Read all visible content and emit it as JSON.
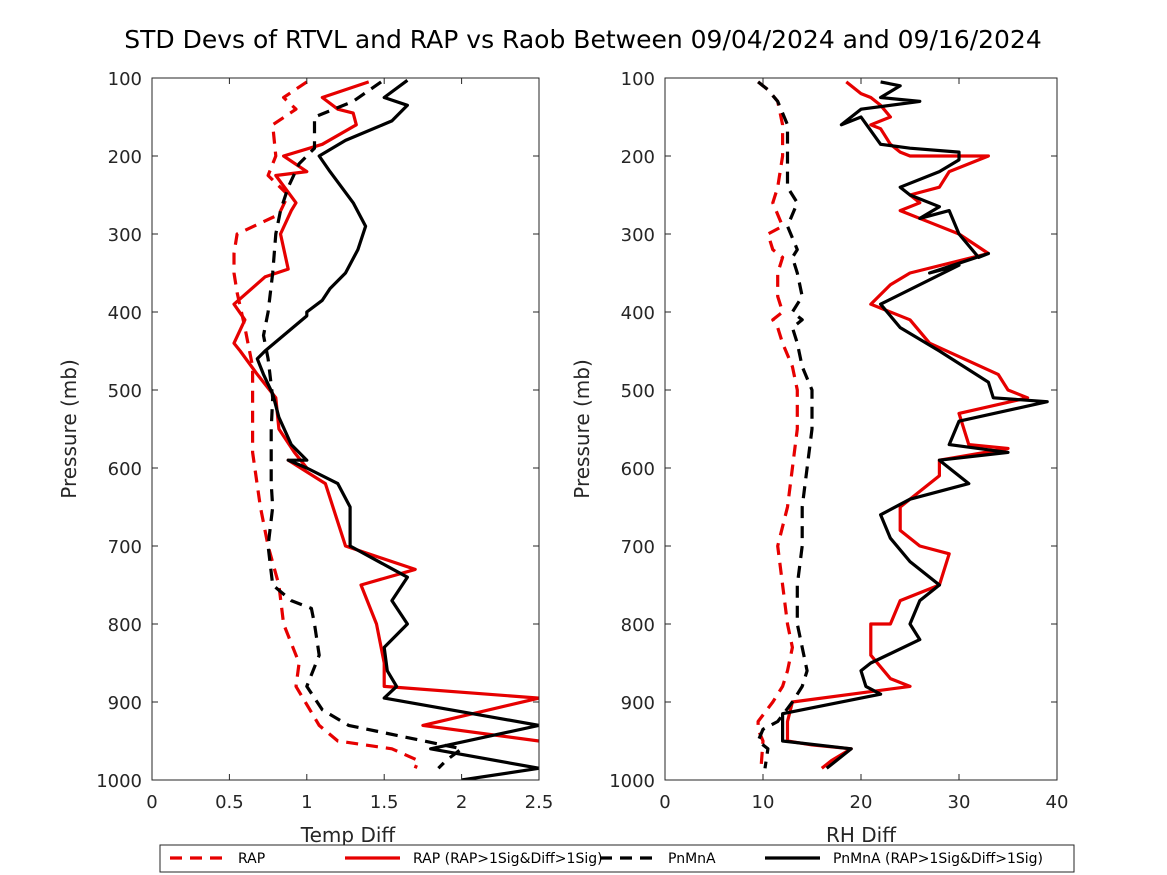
{
  "title": "STD Devs of RTVL and RAP vs Raob Between 09/04/2024 and 09/16/2024",
  "chart_data": [
    {
      "type": "line",
      "panel": "left",
      "xlabel": "Temp Diff",
      "ylabel": "Pressure (mb)",
      "xlim": [
        0,
        2.5
      ],
      "ylim": [
        1000,
        100
      ],
      "y_reversed": true,
      "xticks": [
        "0",
        "0.5",
        "1",
        "1.5",
        "2",
        "2.5"
      ],
      "yticks": [
        "100",
        "200",
        "300",
        "400",
        "500",
        "600",
        "700",
        "800",
        "900",
        "1000"
      ],
      "series": [
        {
          "name": "RAP",
          "style": "dashed",
          "color": "#e60000",
          "x": [
            1.0,
            0.85,
            0.93,
            0.78,
            0.8,
            0.75,
            0.88,
            0.82,
            0.55,
            0.53,
            0.53,
            0.55,
            0.6,
            0.65,
            0.65,
            0.65,
            0.7,
            0.75,
            0.82,
            0.85,
            0.95,
            0.93,
            1.08,
            1.2,
            1.55,
            1.72,
            1.7
          ],
          "y": [
            105,
            125,
            140,
            160,
            200,
            225,
            250,
            275,
            300,
            325,
            350,
            375,
            420,
            470,
            520,
            580,
            650,
            700,
            750,
            800,
            850,
            880,
            930,
            950,
            960,
            975,
            985
          ]
        },
        {
          "name": "RAP (RAP>1Sig&Diff>1Sig)",
          "style": "solid",
          "color": "#e60000",
          "x": [
            1.4,
            1.1,
            1.2,
            1.3,
            1.32,
            1.1,
            0.85,
            1.0,
            0.8,
            0.93,
            0.9,
            0.83,
            0.88,
            0.73,
            0.53,
            0.6,
            0.53,
            0.57,
            0.68,
            0.8,
            0.82,
            0.92,
            1.0,
            0.88,
            1.12,
            1.25,
            1.7,
            1.35,
            1.45,
            1.5,
            1.5,
            2.5,
            1.75,
            2.5
          ],
          "y": [
            105,
            125,
            140,
            145,
            160,
            185,
            200,
            220,
            225,
            260,
            270,
            300,
            345,
            355,
            390,
            410,
            440,
            450,
            480,
            510,
            550,
            580,
            600,
            590,
            620,
            700,
            730,
            750,
            800,
            850,
            880,
            895,
            930,
            950
          ]
        },
        {
          "name": "PnMnA",
          "style": "dashed",
          "color": "#000000",
          "x": [
            1.48,
            1.3,
            1.05,
            1.05,
            0.95,
            0.88,
            0.83,
            0.8,
            0.78,
            0.75,
            0.72,
            0.75,
            0.78,
            0.77,
            0.77,
            0.77,
            0.78,
            0.75,
            0.78,
            0.9,
            1.03,
            1.05,
            1.08,
            1.0,
            1.1,
            1.27,
            2.0,
            1.9,
            1.85
          ],
          "y": [
            105,
            130,
            150,
            190,
            210,
            240,
            270,
            300,
            350,
            400,
            430,
            460,
            510,
            550,
            590,
            620,
            650,
            700,
            750,
            770,
            780,
            800,
            840,
            880,
            910,
            930,
            960,
            975,
            985
          ]
        },
        {
          "name": "PnMnA (RAP>1Sig&Diff>1Sig)",
          "style": "solid",
          "color": "#000000",
          "x": [
            1.65,
            1.5,
            1.65,
            1.55,
            1.25,
            1.08,
            1.15,
            1.3,
            1.38,
            1.33,
            1.25,
            1.15,
            1.1,
            1.0,
            1.0,
            0.85,
            0.73,
            0.68,
            0.72,
            0.78,
            0.82,
            0.9,
            1.0,
            0.88,
            1.0,
            1.2,
            1.28,
            1.28,
            1.65,
            1.55,
            1.65,
            1.5,
            1.52,
            1.58,
            1.5,
            2.5,
            1.8,
            2.5,
            2.0
          ],
          "y": [
            103,
            125,
            135,
            155,
            180,
            200,
            220,
            260,
            290,
            320,
            350,
            370,
            385,
            400,
            405,
            430,
            450,
            460,
            480,
            505,
            535,
            570,
            590,
            590,
            600,
            620,
            650,
            700,
            740,
            770,
            800,
            830,
            860,
            880,
            895,
            930,
            960,
            985,
            1000
          ]
        }
      ]
    },
    {
      "type": "line",
      "panel": "right",
      "xlabel": "RH Diff",
      "ylabel": "Pressure (mb)",
      "xlim": [
        0,
        40
      ],
      "ylim": [
        1000,
        100
      ],
      "y_reversed": true,
      "xticks": [
        "0",
        "10",
        "20",
        "30",
        "40"
      ],
      "yticks": [
        "100",
        "200",
        "300",
        "400",
        "500",
        "600",
        "700",
        "800",
        "900",
        "1000"
      ],
      "series": [
        {
          "name": "RAP",
          "style": "dashed",
          "color": "#e60000",
          "x": [
            9.5,
            10.5,
            11.5,
            12,
            12,
            11.5,
            11,
            12,
            10.5,
            11,
            12,
            11.5,
            11.5,
            12,
            11,
            11.5,
            12,
            13,
            13.5,
            13.5,
            13,
            12.5,
            11.5,
            12,
            12.5,
            13,
            12.5,
            12,
            11,
            9.5,
            9.5,
            10,
            9.8
          ],
          "y": [
            105,
            115,
            130,
            160,
            200,
            240,
            260,
            290,
            300,
            320,
            330,
            350,
            380,
            400,
            410,
            420,
            440,
            470,
            500,
            550,
            600,
            650,
            700,
            750,
            800,
            830,
            860,
            880,
            900,
            925,
            935,
            950,
            985
          ]
        },
        {
          "name": "RAP (RAP>1Sig&Diff>1Sig)",
          "style": "solid",
          "color": "#e60000",
          "x": [
            18.5,
            20,
            21,
            22,
            23,
            21,
            22,
            23,
            24,
            25,
            33,
            29,
            28,
            25,
            26,
            24,
            27,
            30,
            33,
            25,
            23,
            21,
            25,
            27,
            34,
            35,
            37,
            30,
            31,
            35,
            28,
            28,
            24,
            24,
            26,
            29,
            28,
            24,
            23,
            21,
            21,
            23,
            25,
            13,
            12.5,
            12.5,
            15,
            19,
            17,
            16
          ],
          "y": [
            105,
            120,
            125,
            135,
            150,
            160,
            165,
            185,
            195,
            200,
            200,
            220,
            240,
            250,
            260,
            270,
            285,
            300,
            325,
            350,
            365,
            390,
            410,
            440,
            480,
            500,
            510,
            530,
            570,
            575,
            590,
            610,
            650,
            680,
            700,
            710,
            750,
            770,
            800,
            800,
            840,
            870,
            880,
            900,
            925,
            950,
            955,
            960,
            975,
            985
          ]
        },
        {
          "name": "PnMnA",
          "style": "dashed",
          "color": "#000000",
          "x": [
            9.5,
            10.5,
            11.5,
            12.5,
            12.5,
            12.5,
            13.5,
            12.5,
            13.5,
            13,
            13.5,
            14,
            13,
            14,
            13,
            13.5,
            14,
            15,
            15,
            14.5,
            14,
            14,
            13.5,
            13.5,
            14,
            14.5,
            14,
            13,
            11.5,
            10,
            9.5,
            10.5,
            10.2
          ],
          "y": [
            105,
            115,
            130,
            160,
            200,
            240,
            260,
            290,
            320,
            330,
            350,
            380,
            400,
            410,
            420,
            440,
            470,
            500,
            550,
            600,
            650,
            700,
            750,
            800,
            830,
            860,
            880,
            900,
            925,
            935,
            950,
            960,
            985
          ]
        },
        {
          "name": "PnMnA (RAP>1Sig&Diff>1Sig)",
          "style": "solid",
          "color": "#000000",
          "x": [
            22,
            24,
            22,
            26,
            20,
            18,
            20,
            22,
            25,
            30,
            30,
            28,
            24,
            25,
            28,
            26,
            29,
            30,
            32,
            33,
            27,
            30,
            22,
            24,
            28,
            33,
            33.5,
            39,
            30,
            29,
            35,
            28,
            31,
            25,
            22,
            23,
            25,
            28,
            26,
            25,
            26,
            21,
            20,
            20.5,
            22,
            20,
            12,
            12,
            19,
            16.5
          ],
          "y": [
            105,
            110,
            125,
            130,
            140,
            160,
            150,
            185,
            190,
            195,
            205,
            220,
            240,
            250,
            265,
            280,
            270,
            300,
            330,
            325,
            350,
            340,
            390,
            420,
            450,
            490,
            510,
            515,
            540,
            570,
            580,
            590,
            620,
            640,
            660,
            690,
            720,
            750,
            770,
            800,
            820,
            850,
            860,
            880,
            890,
            895,
            915,
            950,
            960,
            985
          ]
        }
      ]
    }
  ],
  "legend": {
    "placement": "bottom",
    "items": [
      {
        "label": "RAP",
        "color": "#e60000",
        "style": "dashed"
      },
      {
        "label": "RAP (RAP>1Sig&Diff>1Sig)",
        "color": "#e60000",
        "style": "solid"
      },
      {
        "label": "PnMnA",
        "color": "#000000",
        "style": "dashed"
      },
      {
        "label": "PnMnA (RAP>1Sig&Diff>1Sig)",
        "color": "#000000",
        "style": "solid"
      }
    ]
  }
}
